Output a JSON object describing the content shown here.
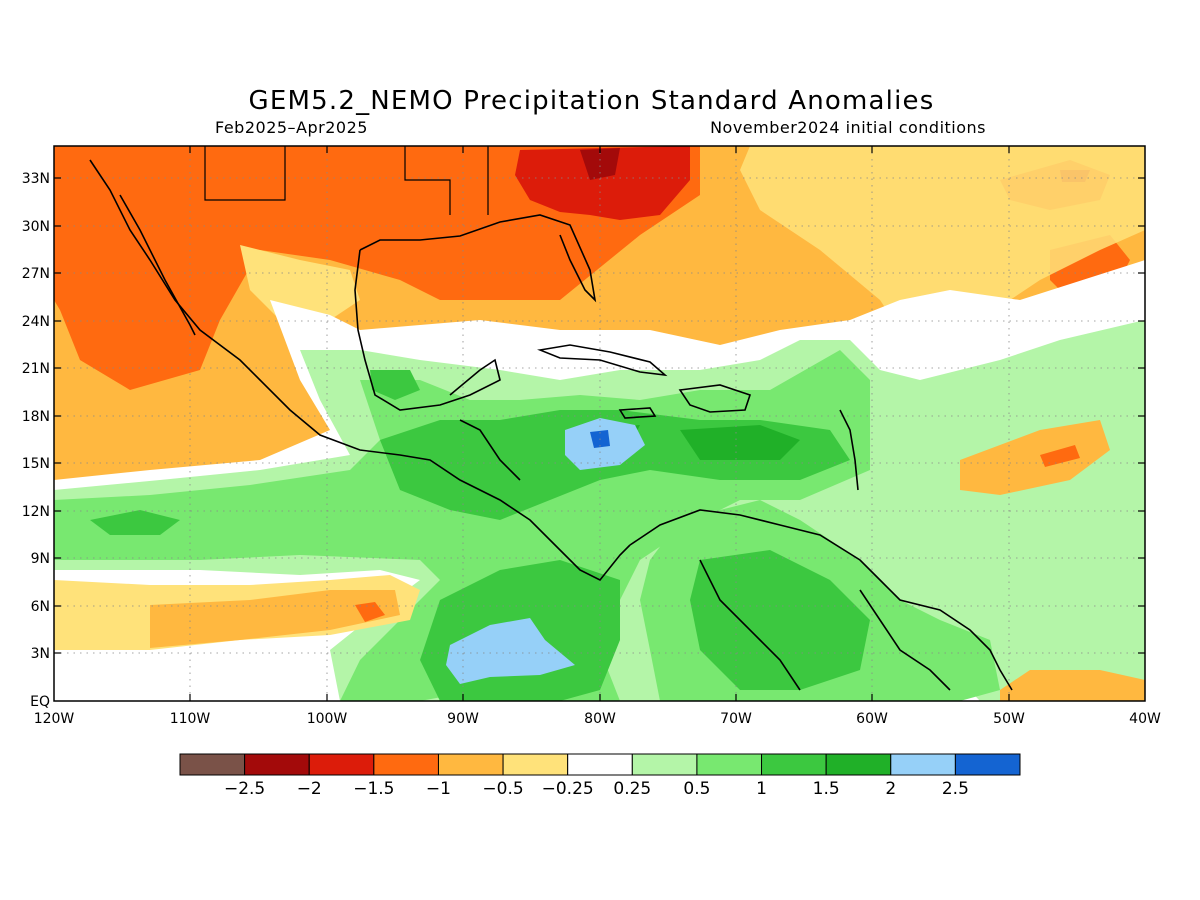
{
  "title": "GEM5.2_NEMO Precipitation Standard Anomalies",
  "subtitle_left": "Feb2025–Apr2025",
  "subtitle_right": "November2024 initial conditions",
  "lat_labels": [
    "33N",
    "30N",
    "27N",
    "24N",
    "21N",
    "18N",
    "15N",
    "12N",
    "9N",
    "6N",
    "3N",
    "EQ"
  ],
  "lon_labels": [
    "120W",
    "110W",
    "100W",
    "90W",
    "80W",
    "70W",
    "60W",
    "50W",
    "40W"
  ],
  "colorbar": {
    "colors": [
      "#7a5248",
      "#a30a0a",
      "#dc1c0a",
      "#ff6a10",
      "#ffb840",
      "#ffe27a",
      "#ffffff",
      "#b4f5a8",
      "#78e870",
      "#3cc840",
      "#20b028",
      "#96d0f8",
      "#1464d2"
    ],
    "labels": [
      "−2.5",
      "−2",
      "−1.5",
      "−1",
      "−0.5",
      "−0.25",
      "0.25",
      "0.5",
      "1",
      "1.5",
      "2",
      "2.5"
    ]
  }
}
